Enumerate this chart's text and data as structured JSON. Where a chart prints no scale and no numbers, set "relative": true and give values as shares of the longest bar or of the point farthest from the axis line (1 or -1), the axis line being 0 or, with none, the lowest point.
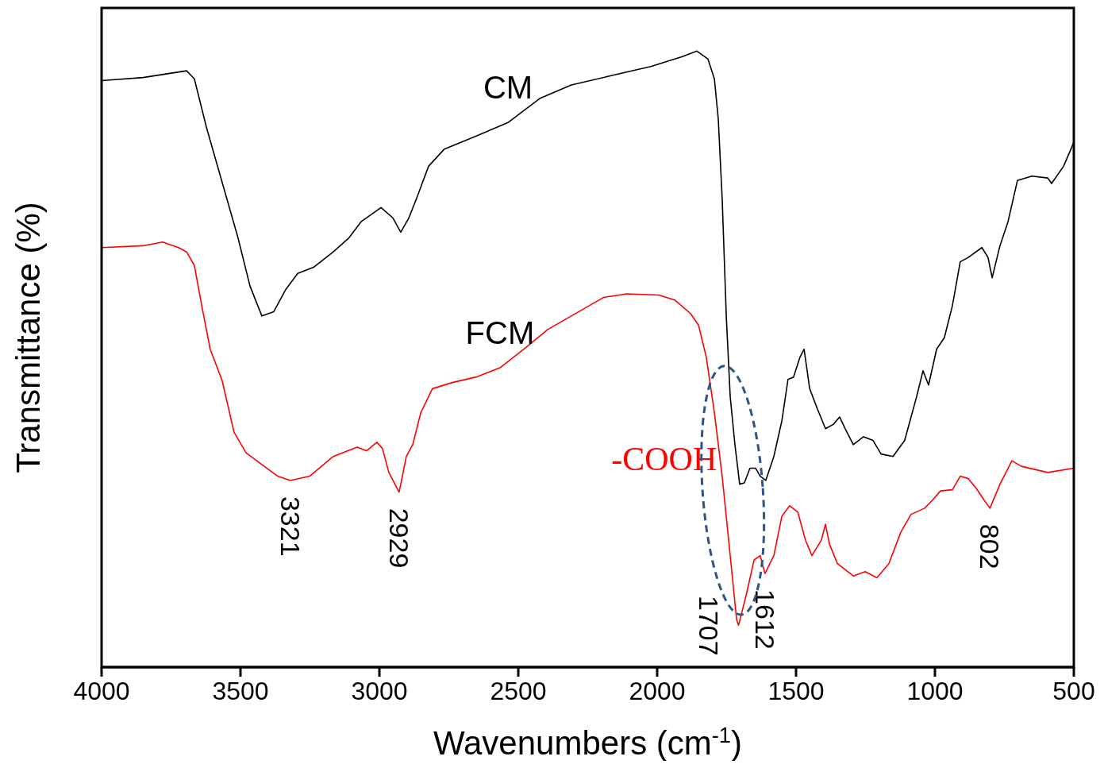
{
  "chart_data": {
    "type": "line",
    "xlabel": "Wavenumbers (cm$^{-1}$)",
    "ylabel": "Transmittance (%)",
    "relative": true,
    "xlim": [
      4000,
      500
    ],
    "xticks": [
      4000,
      3500,
      3000,
      2500,
      2000,
      1500,
      1000,
      500
    ],
    "marker": "none",
    "line_style": "solid",
    "series": [
      {
        "name": "CM",
        "color": "#000000",
        "x": [
          4000,
          3851,
          3694,
          3666,
          3623,
          3566,
          3509,
          3466,
          3423,
          3380,
          3337,
          3294,
          3237,
          3166,
          3109,
          3066,
          2994,
          2951,
          2923,
          2894,
          2866,
          2823,
          2766,
          2651,
          2537,
          2423,
          2309,
          2166,
          2023,
          1909,
          1857,
          1817,
          1794,
          1780,
          1766,
          1751,
          1737,
          1720,
          1703,
          1686,
          1666,
          1646,
          1629,
          1609,
          1580,
          1551,
          1529,
          1509,
          1486,
          1471,
          1451,
          1423,
          1394,
          1366,
          1343,
          1323,
          1294,
          1257,
          1223,
          1194,
          1151,
          1109,
          1066,
          1043,
          1023,
          994,
          966,
          937,
          909,
          880,
          831,
          809,
          794,
          766,
          737,
          703,
          651,
          594,
          580,
          537,
          500
        ],
        "values": [
          0.952,
          0.957,
          0.968,
          0.955,
          0.877,
          0.787,
          0.697,
          0.619,
          0.57,
          0.577,
          0.613,
          0.639,
          0.649,
          0.674,
          0.697,
          0.723,
          0.746,
          0.729,
          0.706,
          0.729,
          0.761,
          0.813,
          0.841,
          0.862,
          0.884,
          0.923,
          0.945,
          0.96,
          0.975,
          0.991,
          1,
          0.987,
          0.955,
          0.89,
          0.761,
          0.568,
          0.439,
          0.361,
          0.297,
          0.299,
          0.323,
          0.323,
          0.31,
          0.303,
          0.342,
          0.4,
          0.467,
          0.471,
          0.503,
          0.516,
          0.452,
          0.419,
          0.387,
          0.394,
          0.406,
          0.387,
          0.361,
          0.374,
          0.368,
          0.346,
          0.342,
          0.368,
          0.439,
          0.481,
          0.458,
          0.516,
          0.535,
          0.587,
          0.658,
          0.665,
          0.681,
          0.665,
          0.632,
          0.684,
          0.723,
          0.79,
          0.797,
          0.794,
          0.785,
          0.813,
          0.852
        ]
      },
      {
        "name": "FCM",
        "color": "#ff0000",
        "x": [
          4000,
          3851,
          3780,
          3723,
          3694,
          3666,
          3637,
          3609,
          3566,
          3523,
          3480,
          3423,
          3366,
          3321,
          3251,
          3166,
          3080,
          3046,
          3009,
          2989,
          2966,
          2929,
          2923,
          2903,
          2880,
          2851,
          2809,
          2737,
          2651,
          2566,
          2480,
          2394,
          2309,
          2194,
          2109,
          1994,
          1937,
          1880,
          1851,
          1823,
          1794,
          1766,
          1737,
          1714,
          1707,
          1680,
          1651,
          1629,
          1612,
          1580,
          1551,
          1523,
          1494,
          1466,
          1443,
          1409,
          1394,
          1380,
          1351,
          1294,
          1251,
          1209,
          1166,
          1123,
          1086,
          1037,
          1009,
          980,
          937,
          909,
          880,
          851,
          823,
          802,
          766,
          723,
          689,
          594,
          500
        ],
        "values": [
          0.681,
          0.684,
          0.69,
          0.681,
          0.674,
          0.652,
          0.581,
          0.516,
          0.465,
          0.381,
          0.348,
          0.329,
          0.31,
          0.303,
          0.31,
          0.342,
          0.357,
          0.351,
          0.365,
          0.355,
          0.316,
          0.284,
          0.297,
          0.342,
          0.361,
          0.413,
          0.452,
          0.462,
          0.471,
          0.486,
          0.516,
          0.548,
          0.57,
          0.6,
          0.606,
          0.604,
          0.596,
          0.574,
          0.555,
          0.503,
          0.413,
          0.31,
          0.181,
          0.077,
          0.068,
          0.116,
          0.174,
          0.181,
          0.152,
          0.181,
          0.245,
          0.262,
          0.252,
          0.206,
          0.181,
          0.206,
          0.232,
          0.2,
          0.168,
          0.148,
          0.155,
          0.145,
          0.168,
          0.219,
          0.248,
          0.258,
          0.271,
          0.286,
          0.288,
          0.31,
          0.306,
          0.29,
          0.271,
          0.258,
          0.297,
          0.335,
          0.326,
          0.316,
          0.323
        ]
      }
    ],
    "annotations": [
      {
        "text": "3321",
        "x": 3321,
        "y": 0.303
      },
      {
        "text": "2929",
        "x": 2929,
        "y": 0.284
      },
      {
        "text": "1707",
        "x": 1707,
        "y": 0.068
      },
      {
        "text": "1612",
        "x": 1612,
        "y": 0.152
      },
      {
        "text": "802",
        "x": 802,
        "y": 0.258
      },
      "-COOH"
    ]
  }
}
